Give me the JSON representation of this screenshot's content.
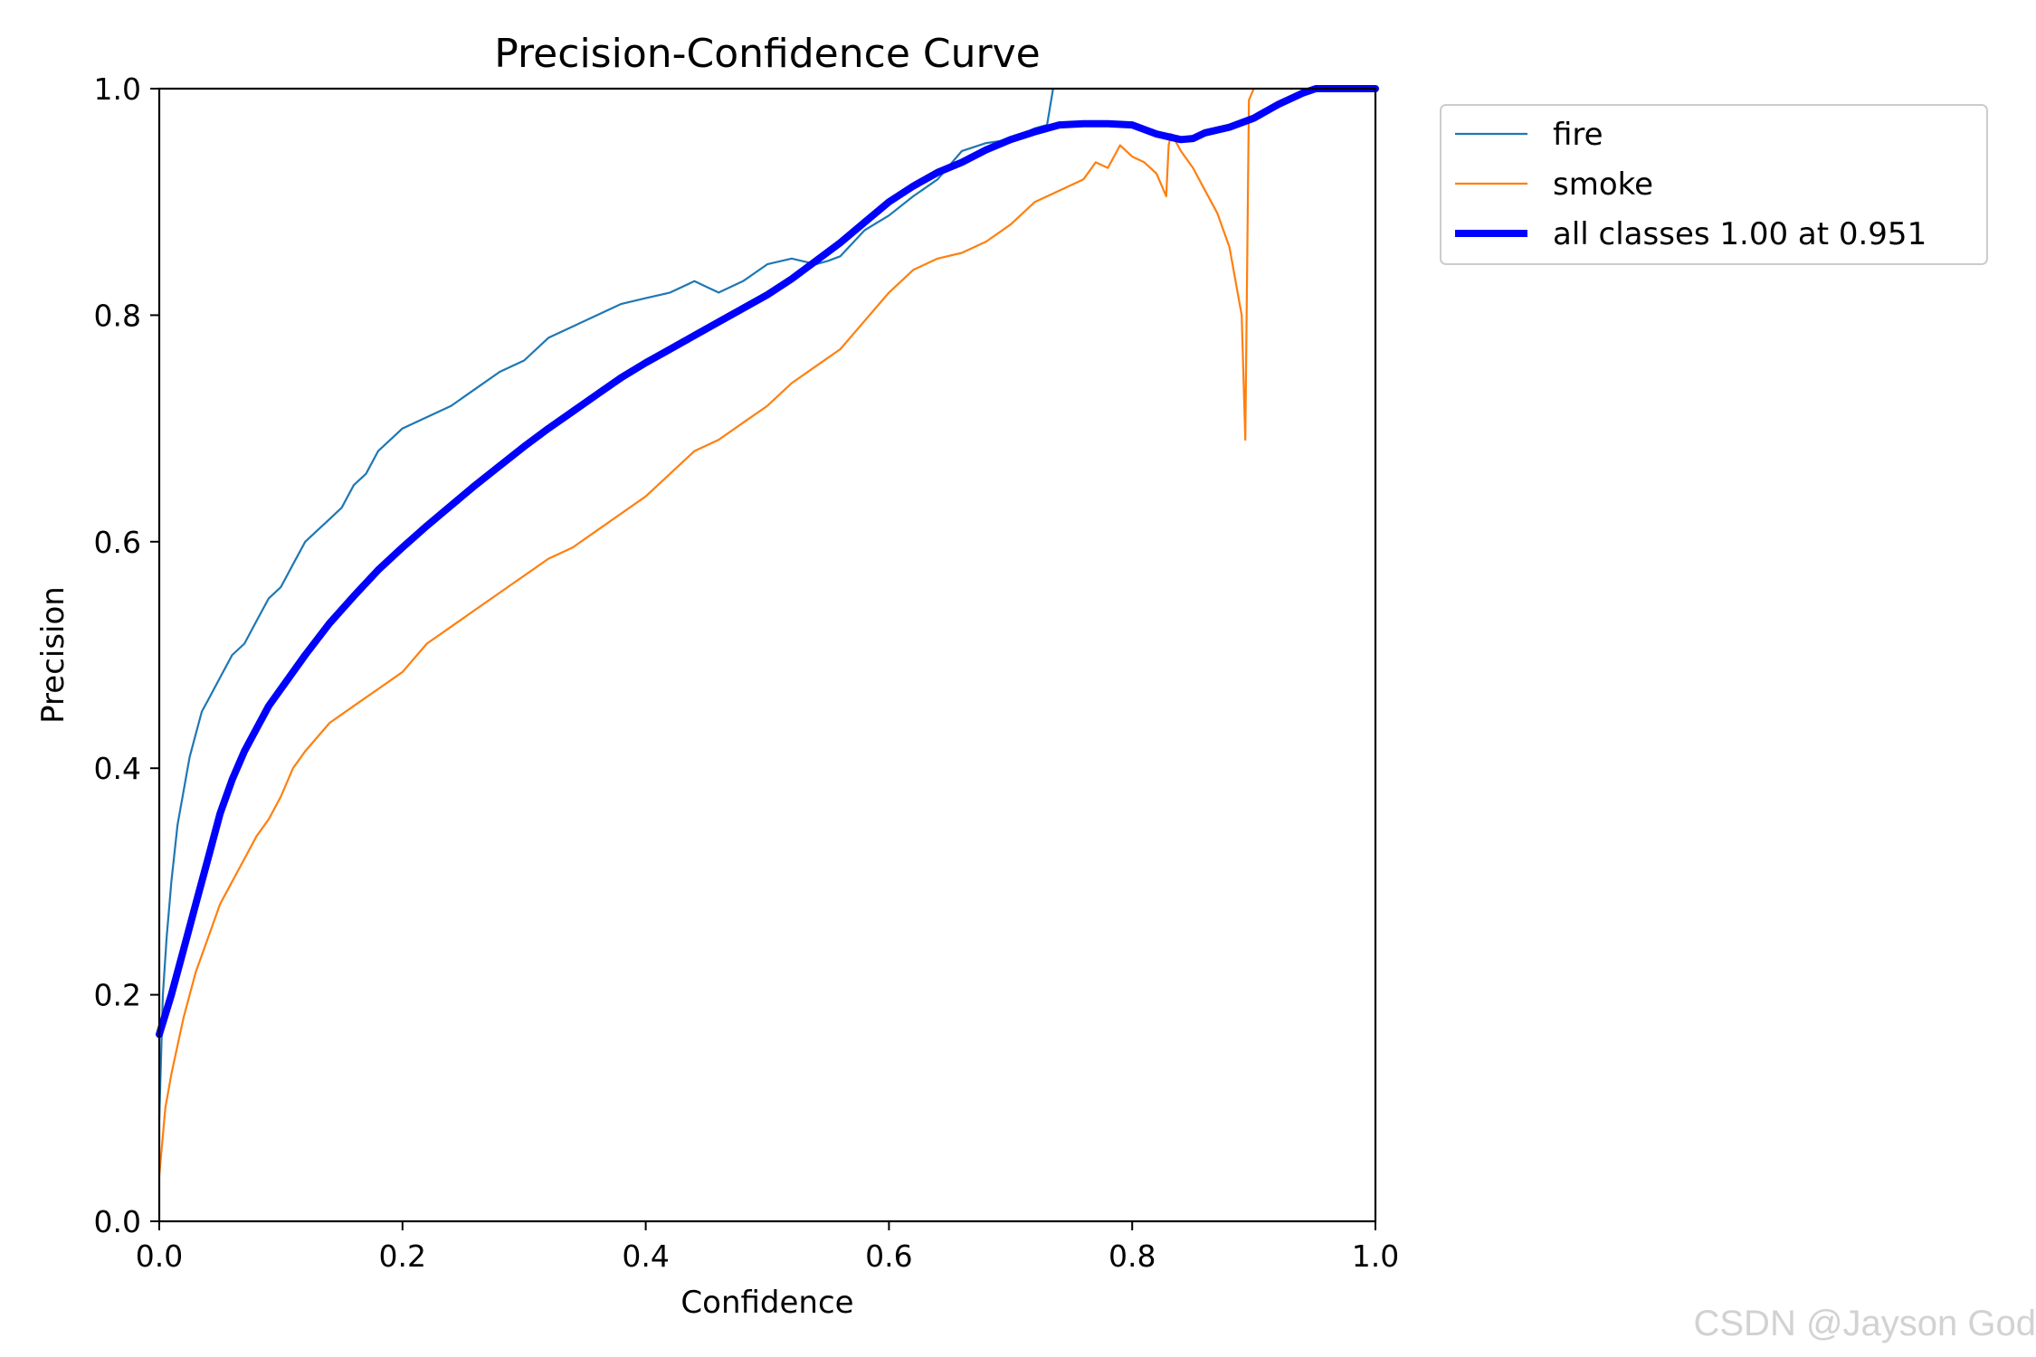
{
  "chart_data": {
    "type": "line",
    "title": "Precision-Confidence Curve",
    "xlabel": "Confidence",
    "ylabel": "Precision",
    "xlim": [
      0.0,
      1.0
    ],
    "ylim": [
      0.0,
      1.0
    ],
    "xticks": [
      "0.0",
      "0.2",
      "0.4",
      "0.6",
      "0.8",
      "1.0"
    ],
    "yticks": [
      "0.0",
      "0.2",
      "0.4",
      "0.6",
      "0.8",
      "1.0"
    ],
    "grid": false,
    "legend_position": "outside-top-right",
    "series": [
      {
        "name": "fire",
        "color": "#1f77b4",
        "width": "thin",
        "x": [
          0.0,
          0.003,
          0.006,
          0.01,
          0.015,
          0.02,
          0.025,
          0.03,
          0.035,
          0.04,
          0.05,
          0.06,
          0.07,
          0.08,
          0.09,
          0.1,
          0.11,
          0.12,
          0.13,
          0.14,
          0.15,
          0.16,
          0.17,
          0.18,
          0.19,
          0.2,
          0.22,
          0.24,
          0.26,
          0.28,
          0.3,
          0.32,
          0.34,
          0.36,
          0.38,
          0.4,
          0.42,
          0.44,
          0.45,
          0.46,
          0.48,
          0.5,
          0.52,
          0.54,
          0.55,
          0.56,
          0.58,
          0.6,
          0.62,
          0.64,
          0.66,
          0.68,
          0.7,
          0.72,
          0.73,
          0.735
        ],
        "y": [
          0.09,
          0.2,
          0.25,
          0.3,
          0.35,
          0.38,
          0.41,
          0.43,
          0.45,
          0.46,
          0.48,
          0.5,
          0.51,
          0.53,
          0.55,
          0.56,
          0.58,
          0.6,
          0.61,
          0.62,
          0.63,
          0.65,
          0.66,
          0.68,
          0.69,
          0.7,
          0.71,
          0.72,
          0.735,
          0.75,
          0.76,
          0.78,
          0.79,
          0.8,
          0.81,
          0.815,
          0.82,
          0.83,
          0.825,
          0.82,
          0.83,
          0.845,
          0.85,
          0.845,
          0.848,
          0.852,
          0.875,
          0.888,
          0.905,
          0.92,
          0.945,
          0.952,
          0.955,
          0.965,
          0.968,
          1.0
        ]
      },
      {
        "name": "smoke",
        "color": "#ff7f0e",
        "width": "thin",
        "x": [
          0.0,
          0.005,
          0.01,
          0.02,
          0.03,
          0.04,
          0.05,
          0.06,
          0.07,
          0.08,
          0.09,
          0.1,
          0.11,
          0.12,
          0.14,
          0.16,
          0.18,
          0.2,
          0.22,
          0.24,
          0.26,
          0.28,
          0.3,
          0.32,
          0.34,
          0.36,
          0.38,
          0.4,
          0.42,
          0.44,
          0.46,
          0.48,
          0.5,
          0.52,
          0.54,
          0.56,
          0.58,
          0.6,
          0.62,
          0.64,
          0.66,
          0.68,
          0.7,
          0.72,
          0.74,
          0.76,
          0.77,
          0.78,
          0.79,
          0.8,
          0.81,
          0.82,
          0.828,
          0.83,
          0.832,
          0.835,
          0.84,
          0.85,
          0.86,
          0.87,
          0.88,
          0.89,
          0.893,
          0.896,
          0.9
        ],
        "y": [
          0.04,
          0.1,
          0.13,
          0.18,
          0.22,
          0.25,
          0.28,
          0.3,
          0.32,
          0.34,
          0.355,
          0.375,
          0.4,
          0.415,
          0.44,
          0.455,
          0.47,
          0.485,
          0.51,
          0.525,
          0.54,
          0.555,
          0.57,
          0.585,
          0.595,
          0.61,
          0.625,
          0.64,
          0.66,
          0.68,
          0.69,
          0.705,
          0.72,
          0.74,
          0.755,
          0.77,
          0.795,
          0.82,
          0.84,
          0.85,
          0.855,
          0.865,
          0.88,
          0.9,
          0.91,
          0.92,
          0.935,
          0.93,
          0.95,
          0.94,
          0.935,
          0.925,
          0.905,
          0.95,
          0.96,
          0.955,
          0.945,
          0.93,
          0.91,
          0.89,
          0.86,
          0.8,
          0.69,
          0.99,
          1.0
        ]
      },
      {
        "name": "all classes 1.00 at 0.951",
        "color": "#0000ff",
        "width": "thick",
        "x": [
          0.0,
          0.01,
          0.02,
          0.03,
          0.04,
          0.05,
          0.06,
          0.07,
          0.08,
          0.09,
          0.1,
          0.12,
          0.14,
          0.16,
          0.18,
          0.2,
          0.22,
          0.24,
          0.26,
          0.28,
          0.3,
          0.32,
          0.34,
          0.36,
          0.38,
          0.4,
          0.42,
          0.44,
          0.46,
          0.48,
          0.5,
          0.52,
          0.54,
          0.56,
          0.58,
          0.6,
          0.62,
          0.64,
          0.66,
          0.68,
          0.7,
          0.72,
          0.74,
          0.76,
          0.78,
          0.8,
          0.82,
          0.84,
          0.85,
          0.86,
          0.88,
          0.9,
          0.92,
          0.94,
          0.951,
          0.96,
          0.98,
          1.0
        ],
        "y": [
          0.165,
          0.2,
          0.24,
          0.28,
          0.32,
          0.36,
          0.39,
          0.415,
          0.435,
          0.455,
          0.47,
          0.5,
          0.528,
          0.552,
          0.575,
          0.595,
          0.614,
          0.632,
          0.65,
          0.667,
          0.684,
          0.7,
          0.715,
          0.73,
          0.745,
          0.758,
          0.77,
          0.782,
          0.794,
          0.806,
          0.818,
          0.832,
          0.848,
          0.864,
          0.882,
          0.9,
          0.914,
          0.926,
          0.935,
          0.946,
          0.955,
          0.962,
          0.968,
          0.969,
          0.969,
          0.968,
          0.96,
          0.955,
          0.956,
          0.961,
          0.966,
          0.974,
          0.986,
          0.996,
          1.0,
          1.0,
          1.0,
          1.0
        ]
      }
    ]
  },
  "watermark": "CSDN @Jayson God"
}
